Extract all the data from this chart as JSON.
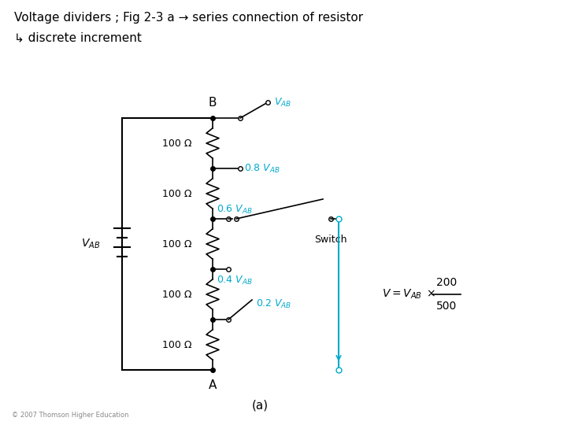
{
  "title_line1": "Voltage dividers ; Fig 2-3 a → series connection of resistor",
  "title_line2": "↳ discrete increment",
  "bg_color": "#ffffff",
  "line_color": "#000000",
  "cyan_color": "#00aacc",
  "resistor_labels": [
    "100 Ω",
    "100 Ω",
    "100 Ω",
    "100 Ω",
    "100 Ω"
  ],
  "tap_labels": [
    "V_{AB}",
    "0.8 V_{AB}",
    "0.6 V_{AB}",
    "0.4 V_{AB}",
    "0.2 V_{AB}"
  ],
  "vab_label": "V_{AB}",
  "node_top": "B",
  "node_bot": "A",
  "switch_label": "Switch",
  "formula_V": "V=V_{AB} \\times",
  "formula_frac_num": "200",
  "formula_frac_den": "500",
  "caption": "(a)",
  "copyright": "© 2007 Thomson Higher Education"
}
